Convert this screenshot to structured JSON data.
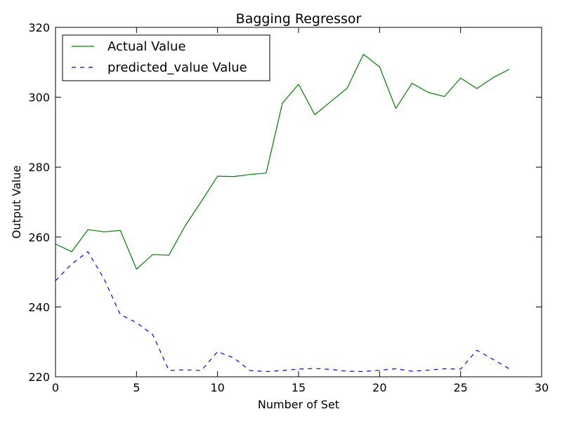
{
  "chart_data": {
    "type": "line",
    "title": "Bagging Regressor",
    "xlabel": "Number of Set",
    "ylabel": "Output Value",
    "xlim": [
      0,
      30
    ],
    "ylim": [
      220,
      320
    ],
    "xticks": [
      0,
      5,
      10,
      15,
      20,
      25,
      30
    ],
    "yticks": [
      220,
      240,
      260,
      280,
      300,
      320
    ],
    "grid": false,
    "legend_position": "top-left",
    "series": [
      {
        "name": "Actual Value",
        "color": "#008000",
        "style": "solid",
        "x": [
          0,
          1,
          2,
          3,
          4,
          5,
          6,
          7,
          8,
          9,
          10,
          11,
          12,
          13,
          14,
          15,
          16,
          17,
          18,
          19,
          20,
          21,
          22,
          23,
          24,
          25,
          26,
          27,
          28
        ],
        "values": [
          258.0,
          255.8,
          262.1,
          261.5,
          261.9,
          250.8,
          255.0,
          254.8,
          263.2,
          270.2,
          277.4,
          277.3,
          277.9,
          278.3,
          298.3,
          303.7,
          295.0,
          298.8,
          302.6,
          312.3,
          308.7,
          296.8,
          304.0,
          301.4,
          300.2,
          305.5,
          302.5,
          305.6,
          308.0
        ]
      },
      {
        "name": "predicted_value Value",
        "color": "#0000ff",
        "style": "dashed",
        "x": [
          0,
          1,
          2,
          3,
          4,
          5,
          6,
          7,
          8,
          9,
          10,
          11,
          12,
          13,
          14,
          15,
          16,
          17,
          18,
          19,
          20,
          21,
          22,
          23,
          24,
          25,
          26,
          27,
          28
        ],
        "values": [
          247.5,
          252.3,
          255.8,
          248.0,
          237.8,
          235.5,
          232.1,
          221.8,
          222.0,
          221.8,
          227.2,
          225.4,
          221.8,
          221.5,
          221.8,
          222.2,
          222.4,
          222.1,
          221.6,
          221.5,
          221.9,
          222.3,
          221.6,
          221.9,
          222.3,
          222.2,
          227.6,
          225.0,
          222.3
        ]
      }
    ]
  }
}
